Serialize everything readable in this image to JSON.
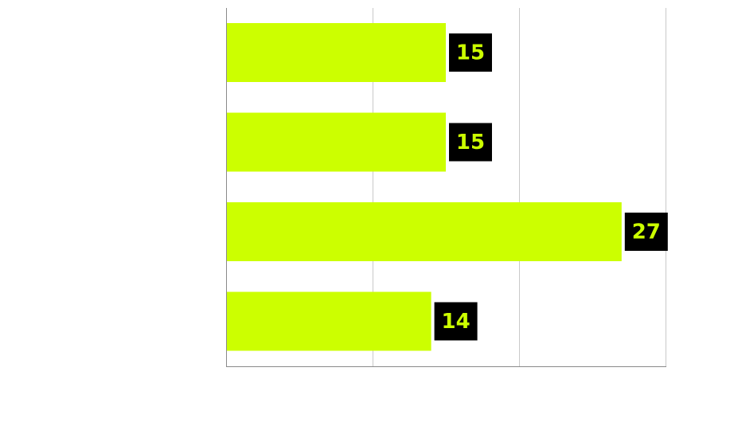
{
  "chart_data": {
    "type": "bar",
    "orientation": "horizontal",
    "categories": [
      "",
      "",
      "",
      ""
    ],
    "values": [
      15,
      15,
      27,
      14
    ],
    "data_labels": [
      "15",
      "15",
      "27",
      "14"
    ],
    "xlim": [
      0,
      30
    ],
    "x_gridlines": [
      0,
      10,
      20,
      30
    ],
    "grid": true,
    "legend": "none",
    "colors": {
      "bar": "#ccff00",
      "label_background": "#000000",
      "label_text": "#ccff00",
      "grid": "#c9c9c9",
      "axis": "#8a8a8a"
    }
  }
}
